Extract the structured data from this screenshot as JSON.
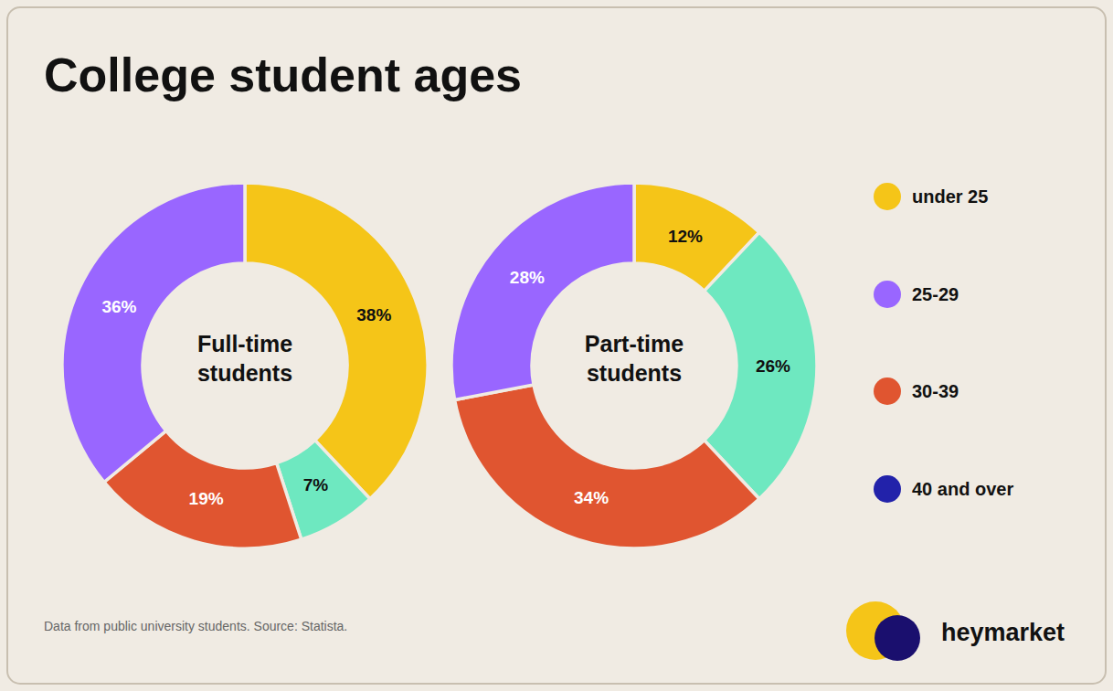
{
  "title": "College student ages",
  "annotations": [
    "Data from public university students. Source: Statista.",
    "heymarket"
  ],
  "legend_entries": [
    {
      "name": "under 25",
      "color": "#f5c518"
    },
    {
      "name": "25-29",
      "color": "#9966ff"
    },
    {
      "name": "30-39",
      "color": "#e05530"
    },
    {
      "name": "40 and over",
      "color": "#2222aa"
    }
  ],
  "chart_data": [
    {
      "type": "pie",
      "title": "Full-time\nstudents",
      "values": [
        38,
        7,
        19,
        36
      ],
      "value_labels": [
        "38%",
        "7%",
        "19%",
        "36%"
      ],
      "colors": [
        "#f5c518",
        "#6ee8c0",
        "#e05530",
        "#9966ff"
      ],
      "data_labels": true
    },
    {
      "type": "pie",
      "title": "Part-time\nstudents",
      "values": [
        12,
        26,
        34,
        28
      ],
      "value_labels": [
        "12%",
        "26%",
        "34%",
        "28%"
      ],
      "colors": [
        "#f5c518",
        "#6ee8c0",
        "#e05530",
        "#9966ff"
      ],
      "data_labels": true
    }
  ]
}
